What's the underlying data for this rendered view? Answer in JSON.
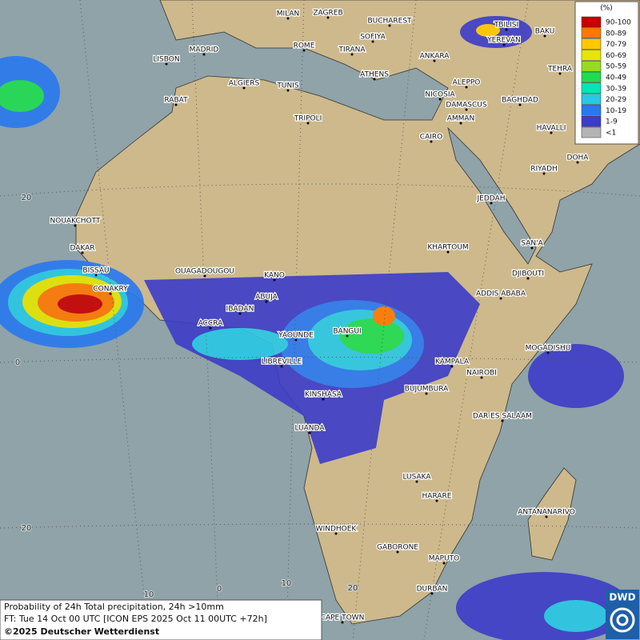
{
  "map": {
    "cities": [
      "MILAN",
      "ZAGREB",
      "BUCHAREST",
      "TBILISI",
      "BAKU",
      "MADRID",
      "ROME",
      "SOFIYA",
      "YEREVAN",
      "LISBON",
      "TIRANA",
      "ANKARA",
      "TEHRA",
      "ALGIERS",
      "TUNIS",
      "ATHENS",
      "ALEPPO",
      "RABAT",
      "NICOSIA",
      "BAGHDAD",
      "TRIPOLI",
      "DAMASCUS",
      "AMMAN",
      "HAVALLI",
      "CAIRO",
      "DOHA",
      "RIYADH",
      "JEDDAH",
      "NOUAKCHOTT",
      "SAN'A",
      "KHARTOUM",
      "DAKAR",
      "BISSAU",
      "DJIBOUTI",
      "OUAGADOUGOU",
      "KANO",
      "CONAKRY",
      "ABUJA",
      "ADDIS ABABA",
      "IBADAN",
      "ACCRA",
      "BANGUI",
      "YAOUNDE",
      "MOGADISHU",
      "LIBREVILLE",
      "KAMPALA",
      "NAIROBI",
      "BUJUMBURA",
      "KINSHASA",
      "DAR ES SALAAM",
      "LUANDA",
      "LUSAKA",
      "HARARE",
      "ANTANANARIVO",
      "WINDHOEK",
      "GABORONE",
      "MAPUTO",
      "DURBAN",
      "CAPE TOWN"
    ],
    "grid_labels": [
      "20",
      "0",
      "20",
      "10",
      "0",
      "10",
      "20"
    ],
    "legend": {
      "title": "(%)",
      "items": [
        {
          "label": "90-100",
          "color": "#c80000"
        },
        {
          "label": "80-89",
          "color": "#ff7800"
        },
        {
          "label": "70-79",
          "color": "#ffc800"
        },
        {
          "label": "60-69",
          "color": "#e6e600"
        },
        {
          "label": "50-59",
          "color": "#96dc1e"
        },
        {
          "label": "40-49",
          "color": "#1edc50"
        },
        {
          "label": "30-39",
          "color": "#00e6b4"
        },
        {
          "label": "20-29",
          "color": "#28c8e6"
        },
        {
          "label": "10-19",
          "color": "#2878f0"
        },
        {
          "label": "1-9",
          "color": "#3c3cc8"
        },
        {
          "label": "<1",
          "color": "#b4b4b4"
        }
      ]
    },
    "footer": [
      "Probability of 24h Total precipitation, 24h >10mm",
      "FT: Tue 14 Oct 00 UTC [ICON EPS 2025 Oct 11 00UTC +72h]",
      "©2025 Deutscher Wetterdienst"
    ],
    "logo": "DWD"
  }
}
